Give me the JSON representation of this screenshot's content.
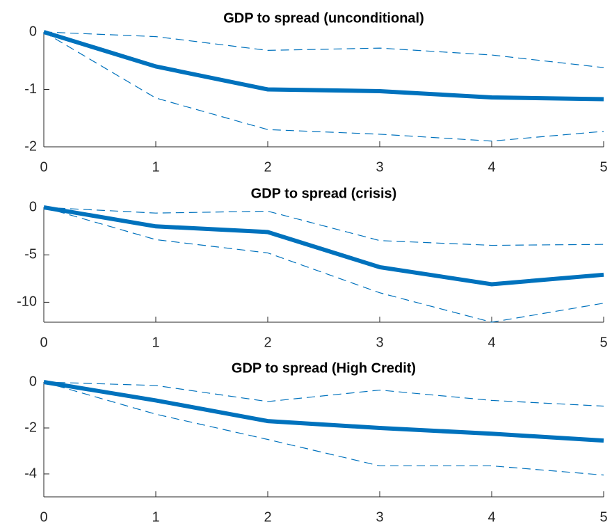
{
  "chart_data": [
    {
      "type": "line",
      "title": "GDP to spread (unconditional)",
      "x": [
        0,
        1,
        2,
        3,
        4,
        5
      ],
      "xlim": [
        0,
        5
      ],
      "xticks": [
        0,
        1,
        2,
        3,
        4,
        5
      ],
      "ylim": [
        -2,
        0
      ],
      "yticks": [
        -2,
        -1,
        0
      ],
      "series": [
        {
          "color": "#0072bd",
          "style": "solid",
          "values": [
            0,
            -0.6,
            -1.0,
            -1.03,
            -1.14,
            -1.17
          ]
        },
        {
          "color": "#0072bd",
          "style": "dashed",
          "values": [
            0,
            -0.08,
            -0.32,
            -0.28,
            -0.4,
            -0.62
          ]
        },
        {
          "color": "#0072bd",
          "style": "dashed",
          "values": [
            0,
            -1.15,
            -1.7,
            -1.78,
            -1.9,
            -1.73
          ]
        }
      ]
    },
    {
      "type": "line",
      "title": "GDP to spread (crisis)",
      "x": [
        0,
        1,
        2,
        3,
        4,
        5
      ],
      "xlim": [
        0,
        5
      ],
      "xticks": [
        0,
        1,
        2,
        3,
        4,
        5
      ],
      "ylim": [
        -12.1,
        0
      ],
      "yticks": [
        -10,
        -5,
        0
      ],
      "series": [
        {
          "color": "#0072bd",
          "style": "solid",
          "values": [
            0,
            -2.0,
            -2.6,
            -6.3,
            -8.1,
            -7.1
          ]
        },
        {
          "color": "#0072bd",
          "style": "dashed",
          "values": [
            0,
            -0.6,
            -0.4,
            -3.5,
            -4.0,
            -3.9
          ]
        },
        {
          "color": "#0072bd",
          "style": "dashed",
          "values": [
            0,
            -3.4,
            -4.8,
            -9.0,
            -12.1,
            -10.1
          ]
        }
      ]
    },
    {
      "type": "line",
      "title": "GDP to spread (High Credit)",
      "x": [
        0,
        1,
        2,
        3,
        4,
        5
      ],
      "xlim": [
        0,
        5
      ],
      "xticks": [
        0,
        1,
        2,
        3,
        4,
        5
      ],
      "ylim": [
        -5,
        0
      ],
      "yticks": [
        -4,
        -2,
        0
      ],
      "series": [
        {
          "color": "#0072bd",
          "style": "solid",
          "values": [
            0,
            -0.8,
            -1.7,
            -2.0,
            -2.25,
            -2.55
          ]
        },
        {
          "color": "#0072bd",
          "style": "dashed",
          "values": [
            0,
            -0.15,
            -0.85,
            -0.35,
            -0.8,
            -1.05
          ]
        },
        {
          "color": "#0072bd",
          "style": "dashed",
          "values": [
            0,
            -1.4,
            -2.5,
            -3.65,
            -3.65,
            -4.05
          ]
        }
      ]
    }
  ]
}
